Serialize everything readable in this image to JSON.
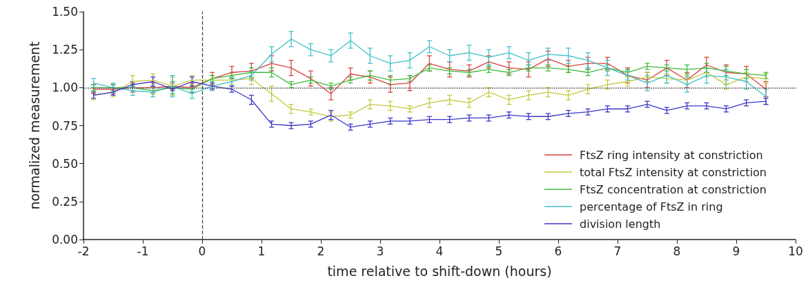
{
  "chart_data": {
    "type": "line",
    "xlabel": "time relative to shift-down (hours)",
    "ylabel": "normalized measurement",
    "x": [
      -1.83,
      -1.5,
      -1.17,
      -0.83,
      -0.5,
      -0.17,
      0.17,
      0.5,
      0.83,
      1.17,
      1.5,
      1.83,
      2.17,
      2.5,
      2.83,
      3.17,
      3.5,
      3.83,
      4.17,
      4.5,
      4.83,
      5.17,
      5.5,
      5.83,
      6.17,
      6.5,
      6.83,
      7.17,
      7.5,
      7.83,
      8.17,
      8.5,
      8.83,
      9.17,
      9.5
    ],
    "series": [
      {
        "name": "FtsZ ring intensity at constriction",
        "color": "#d9413f",
        "values": [
          0.99,
          0.99,
          1.0,
          1.0,
          1.01,
          1.0,
          1.06,
          1.1,
          1.11,
          1.16,
          1.13,
          1.06,
          0.96,
          1.09,
          1.07,
          1.02,
          1.03,
          1.16,
          1.12,
          1.11,
          1.17,
          1.13,
          1.12,
          1.19,
          1.14,
          1.16,
          1.16,
          1.08,
          1.05,
          1.13,
          1.05,
          1.15,
          1.1,
          1.09,
          0.99
        ],
        "errors": [
          0.03,
          0.03,
          0.03,
          0.03,
          0.02,
          0.03,
          0.04,
          0.04,
          0.05,
          0.05,
          0.05,
          0.05,
          0.04,
          0.04,
          0.04,
          0.05,
          0.05,
          0.05,
          0.05,
          0.04,
          0.04,
          0.04,
          0.05,
          0.05,
          0.04,
          0.04,
          0.04,
          0.05,
          0.05,
          0.05,
          0.05,
          0.05,
          0.05,
          0.05,
          0.05
        ]
      },
      {
        "name": "total FtsZ intensity at constriction",
        "color": "#c4c83c",
        "values": [
          0.95,
          0.97,
          1.04,
          1.05,
          1.01,
          1.05,
          1.05,
          1.05,
          1.06,
          0.96,
          0.86,
          0.84,
          0.81,
          0.82,
          0.89,
          0.88,
          0.86,
          0.9,
          0.92,
          0.9,
          0.97,
          0.92,
          0.95,
          0.97,
          0.95,
          0.99,
          1.02,
          1.04,
          1.07,
          1.06,
          1.05,
          1.1,
          1.02,
          1.07,
          1.06
        ],
        "errors": [
          0.03,
          0.03,
          0.04,
          0.04,
          0.06,
          0.03,
          0.03,
          0.03,
          0.04,
          0.05,
          0.03,
          0.02,
          0.03,
          0.02,
          0.03,
          0.03,
          0.02,
          0.03,
          0.03,
          0.03,
          0.03,
          0.03,
          0.03,
          0.03,
          0.03,
          0.03,
          0.03,
          0.03,
          0.03,
          0.03,
          0.03,
          0.03,
          0.03,
          0.03,
          0.03
        ]
      },
      {
        "name": "FtsZ concentration at constriction",
        "color": "#3cbc3c",
        "values": [
          1.0,
          1.0,
          1.0,
          0.98,
          1.0,
          0.99,
          1.06,
          1.08,
          1.1,
          1.1,
          1.02,
          1.05,
          1.01,
          1.05,
          1.08,
          1.05,
          1.06,
          1.13,
          1.11,
          1.1,
          1.12,
          1.1,
          1.13,
          1.13,
          1.12,
          1.1,
          1.13,
          1.1,
          1.14,
          1.13,
          1.12,
          1.13,
          1.11,
          1.09,
          1.08
        ],
        "errors": [
          0.02,
          0.02,
          0.02,
          0.02,
          0.04,
          0.02,
          0.02,
          0.02,
          0.03,
          0.03,
          0.02,
          0.02,
          0.02,
          0.02,
          0.03,
          0.03,
          0.02,
          0.02,
          0.02,
          0.02,
          0.02,
          0.02,
          0.02,
          0.02,
          0.02,
          0.02,
          0.02,
          0.02,
          0.02,
          0.02,
          0.03,
          0.03,
          0.03,
          0.03,
          0.02
        ]
      },
      {
        "name": "percentage of FtsZ in ring",
        "color": "#3fc0c8",
        "values": [
          1.03,
          1.0,
          0.98,
          0.97,
          1.01,
          0.96,
          1.01,
          1.04,
          1.08,
          1.22,
          1.32,
          1.25,
          1.21,
          1.31,
          1.21,
          1.16,
          1.18,
          1.27,
          1.21,
          1.23,
          1.2,
          1.23,
          1.18,
          1.22,
          1.21,
          1.18,
          1.13,
          1.08,
          1.03,
          1.08,
          1.02,
          1.08,
          1.07,
          1.04,
          0.94
        ],
        "errors": [
          0.03,
          0.03,
          0.03,
          0.03,
          0.07,
          0.03,
          0.03,
          0.03,
          0.03,
          0.05,
          0.05,
          0.04,
          0.04,
          0.05,
          0.05,
          0.05,
          0.05,
          0.04,
          0.04,
          0.05,
          0.05,
          0.04,
          0.05,
          0.04,
          0.05,
          0.05,
          0.05,
          0.03,
          0.05,
          0.05,
          0.05,
          0.05,
          0.05,
          0.05,
          0.05
        ]
      },
      {
        "name": "division length",
        "color": "#3a35c8",
        "values": [
          0.95,
          0.97,
          1.02,
          1.04,
          0.99,
          1.04,
          1.01,
          0.99,
          0.92,
          0.76,
          0.75,
          0.76,
          0.82,
          0.74,
          0.76,
          0.78,
          0.78,
          0.79,
          0.79,
          0.8,
          0.8,
          0.82,
          0.81,
          0.81,
          0.83,
          0.84,
          0.86,
          0.86,
          0.89,
          0.85,
          0.88,
          0.88,
          0.86,
          0.9,
          0.91
        ],
        "errors": [
          0.02,
          0.02,
          0.02,
          0.03,
          0.01,
          0.03,
          0.02,
          0.02,
          0.03,
          0.02,
          0.02,
          0.02,
          0.03,
          0.02,
          0.02,
          0.02,
          0.02,
          0.02,
          0.02,
          0.02,
          0.02,
          0.02,
          0.02,
          0.02,
          0.02,
          0.02,
          0.02,
          0.02,
          0.02,
          0.02,
          0.02,
          0.02,
          0.02,
          0.02,
          0.02
        ]
      }
    ],
    "xlim": [
      -2,
      10
    ],
    "xticks": [
      -2,
      -1,
      0,
      1,
      2,
      3,
      4,
      5,
      6,
      7,
      8,
      9,
      10
    ],
    "ylim": [
      0,
      1.5
    ],
    "yticks": [
      {
        "value": 0,
        "label": "0.00"
      },
      {
        "value": 0.25,
        "label": "0.25"
      },
      {
        "value": 0.5,
        "label": "0.50"
      },
      {
        "value": 0.75,
        "label": "0.75"
      },
      {
        "value": 1,
        "label": "1.00"
      },
      {
        "value": 1.25,
        "label": "1.25"
      },
      {
        "value": 1.5,
        "label": "1.50"
      }
    ],
    "ref_lines": [
      {
        "axis": "x",
        "value": 0,
        "color": "#444444",
        "line_style": "dashed"
      },
      {
        "axis": "y",
        "value": 1,
        "color": "#444444",
        "line_style": "dotted"
      }
    ],
    "grid": false,
    "legend": "bottom right",
    "marker": "none",
    "line_style": "solid"
  }
}
